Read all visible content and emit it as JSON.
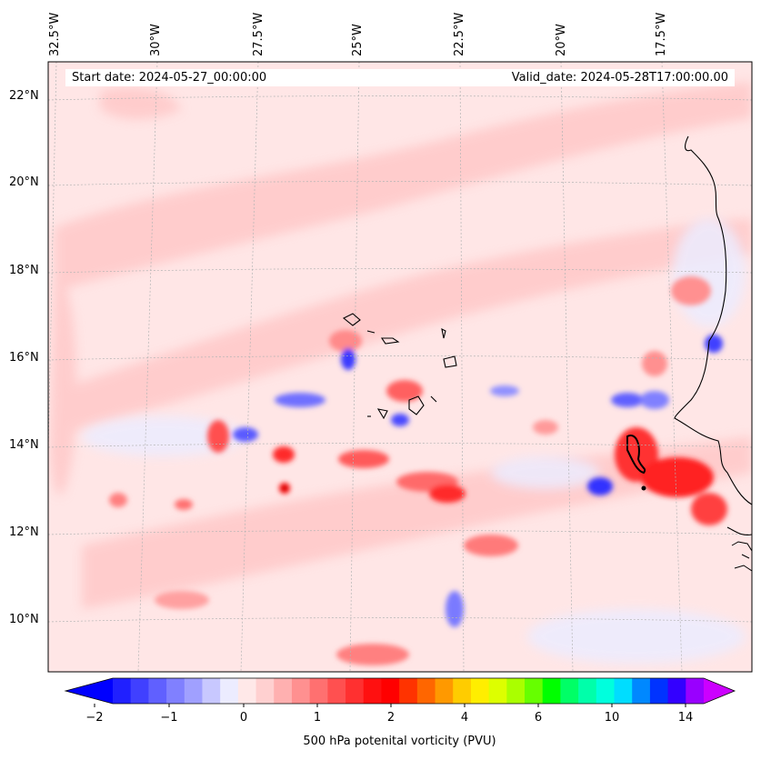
{
  "map": {
    "start_date": "Start date: 2024-05-27_00:00:00",
    "valid_date": "Valid_date: 2024-05-28T17:00:00.00",
    "lon_labels": [
      "32.5°W",
      "30°W",
      "27.5°W",
      "25°W",
      "22.5°W",
      "20°W",
      "17.5°W"
    ],
    "lat_labels": [
      "22°N",
      "20°N",
      "18°N",
      "16°N",
      "14°N",
      "12°N",
      "10°N"
    ],
    "colorbar": {
      "label": "500 hPa potenital vorticity (PVU)",
      "ticks": [
        "−2",
        "−1",
        "0",
        "1",
        "2",
        "4",
        "6",
        "10",
        "14"
      ],
      "colors": [
        "#0000ff",
        "#2020ff",
        "#4040ff",
        "#6060ff",
        "#8080ff",
        "#a0a0ff",
        "#c8c8ff",
        "#ececff",
        "#ffe8e8",
        "#ffd0d0",
        "#ffb0b0",
        "#ff9090",
        "#ff7070",
        "#ff5050",
        "#ff3030",
        "#ff1010",
        "#ff0000",
        "#ff3300",
        "#ff6600",
        "#ff9900",
        "#ffcc00",
        "#ffee00",
        "#ddff00",
        "#aaff00",
        "#66ff00",
        "#00ff00",
        "#00ff66",
        "#00ffaa",
        "#00ffdd",
        "#00ddff",
        "#0088ff",
        "#0033ff",
        "#3300ff",
        "#9900ff",
        "#cc00ff"
      ]
    },
    "colors": {
      "background": "#ffe6e6",
      "coast": "#000000",
      "grid": "#b4b4b4"
    }
  }
}
